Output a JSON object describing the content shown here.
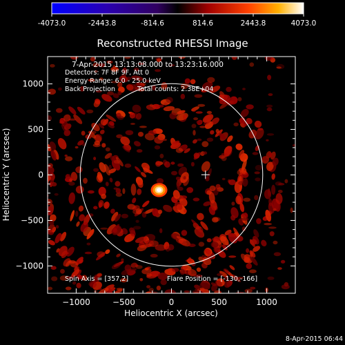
{
  "colorbar": {
    "min_label": "-4073.0",
    "tick_labels": [
      "-4073.0",
      "-2443.8",
      "-814.6",
      "814.6",
      "2443.8",
      "4073.0"
    ],
    "stops": [
      {
        "t": 0.0,
        "color": "#0000ff"
      },
      {
        "t": 0.22,
        "color": "#2a00b0"
      },
      {
        "t": 0.42,
        "color": "#300060"
      },
      {
        "t": 0.5,
        "color": "#000000"
      },
      {
        "t": 0.62,
        "color": "#a00000"
      },
      {
        "t": 0.78,
        "color": "#ff4000"
      },
      {
        "t": 0.9,
        "color": "#ffb000"
      },
      {
        "t": 1.0,
        "color": "#ffffff"
      }
    ]
  },
  "chart_data": {
    "type": "heatmap",
    "title": "Reconstructed RHESSI Image",
    "xlabel": "Heliocentric X (arcsec)",
    "ylabel": "Heliocentric Y (arcsec)",
    "xlim": [
      -1300,
      1300
    ],
    "ylim": [
      -1300,
      1300
    ],
    "xticks": [
      -1000,
      -500,
      0,
      500,
      1000
    ],
    "yticks": [
      -1000,
      -500,
      0,
      500,
      1000
    ],
    "xtick_labels": [
      "−1000",
      "−500",
      "0",
      "500",
      "1000"
    ],
    "ytick_labels": [
      "−1000",
      "−500",
      "0",
      "500",
      "1000"
    ],
    "vmin": -4073.0,
    "vmax": 4073.0,
    "annotations": {
      "time_range": "7-Apr-2015 13:13:08.000 to 13:23:16.000",
      "detectors": "Detectors: 7F 8F 9F, Att 0",
      "energy": "Energy Range: 6.0 - 25.0 keV",
      "method": "Back Projection",
      "counts": "Total counts: 2.38E+04",
      "spin_axis": "Spin Axis = [357,2]",
      "flare_position": "Flare Position = [-130,-166]"
    },
    "solar_disk": {
      "center": [
        0,
        0
      ],
      "radius_arcsec": 958
    },
    "spin_axis_marker": [
      357,
      2
    ],
    "flare_source": {
      "x": -130,
      "y": -166,
      "peak": 4073.0
    },
    "rings": [
      {
        "radius_arcsec": 260,
        "level": 1800
      },
      {
        "radius_arcsec": 590,
        "level": 1700
      },
      {
        "radius_arcsec": 900,
        "level": 1900
      },
      {
        "radius_arcsec": 1200,
        "level": 1600
      }
    ]
  },
  "footer": {
    "timestamp": "8-Apr-2015 06:44"
  }
}
